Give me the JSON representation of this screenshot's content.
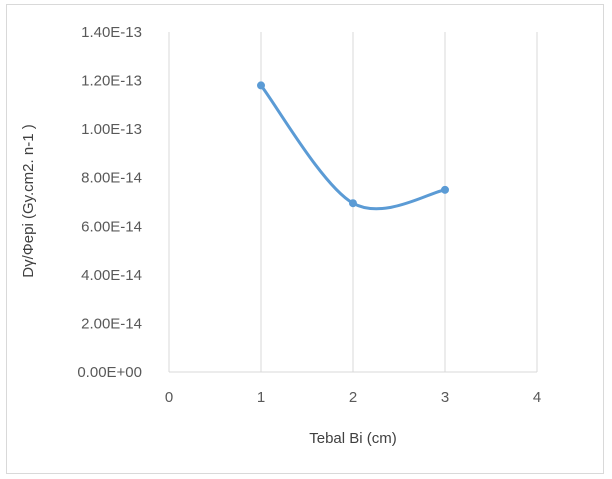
{
  "chart_data": {
    "type": "line",
    "title": "",
    "xlabel": "Tebal Bi (cm)",
    "ylabel": "Dγ/Φepi (Gy.cm2. n-1 )",
    "xlim": [
      0,
      4
    ],
    "ylim": [
      0,
      1.4e-13
    ],
    "x_ticks": [
      "0",
      "1",
      "2",
      "3",
      "4"
    ],
    "y_ticks": [
      "0.00E+00",
      "2.00E-14",
      "4.00E-14",
      "6.00E-14",
      "8.00E-14",
      "1.00E-13",
      "1.20E-13",
      "1.40E-13"
    ],
    "grid": "vertical",
    "legend": "none",
    "smooth": true,
    "series": [
      {
        "color": "#5b9bd5",
        "x": [
          1,
          2,
          3
        ],
        "y": [
          1.18e-13,
          6.95e-14,
          7.5e-14
        ]
      }
    ]
  }
}
